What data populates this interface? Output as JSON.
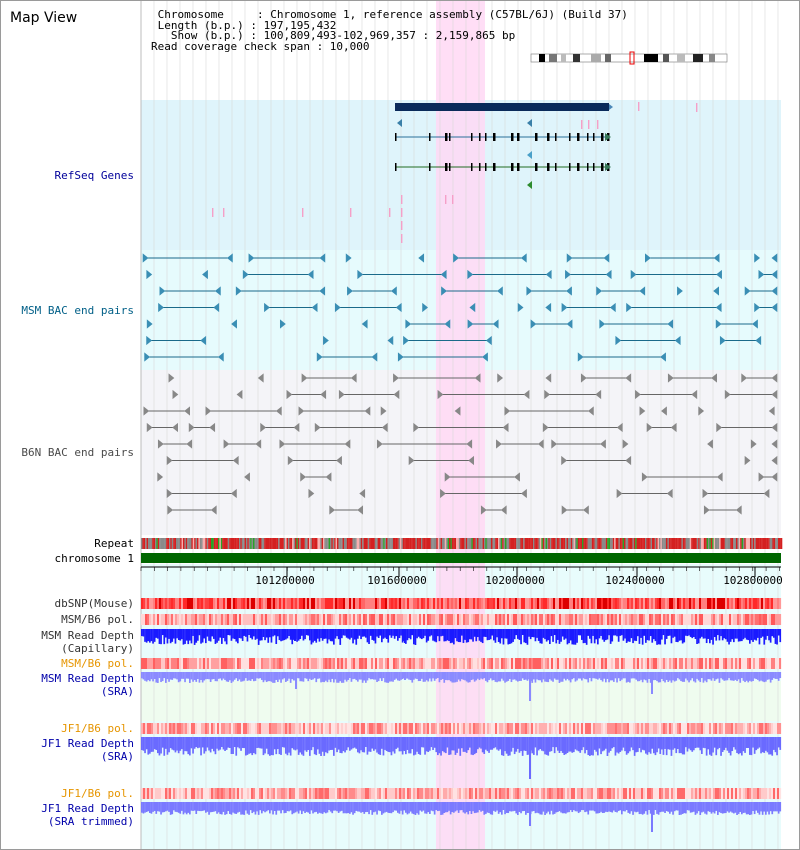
{
  "title": "Map View",
  "info": {
    "line1": " Chromosome     : Chromosome 1, reference assembly (C57BL/6J) (Build 37)",
    "line2": " Length (b.p.) : 197,195,432",
    "line3": "   Show (b.p.) : 100,809,493-102,969,357 : 2,159,865 bp",
    "line4": "Read coverage check span : 10,000"
  },
  "tracks": {
    "refseq": "RefSeq Genes",
    "msm_bac": "MSM BAC end pairs",
    "b6n_bac": "B6N BAC end pairs",
    "repeat": "Repeat",
    "chromosome": "chromosome 1",
    "dbsnp": "dbSNP(Mouse)",
    "msm_b6_pol": "MSM/B6 pol.",
    "msm_depth_cap_1": "MSM Read Depth",
    "msm_depth_cap_2": "(Capillary)",
    "msm_b6_pol2": "MSM/B6 pol.",
    "msm_depth_sra_1": "MSM Read Depth",
    "msm_depth_sra_2": "(SRA)",
    "jf1_b6_pol": "JF1/B6 pol.",
    "jf1_depth_sra_1": "JF1 Read Depth",
    "jf1_depth_sra_2": "(SRA)",
    "jf1_b6_pol2": "JF1/B6 pol.",
    "jf1_depth_trim_1": "JF1 Read Depth",
    "jf1_depth_trim_2": "(SRA trimmed)"
  },
  "ruler_ticks": [
    "101200000",
    "101600000",
    "102000000",
    "102400000",
    "102800000"
  ],
  "colors": {
    "refseq_label": "#00009a",
    "msm_bac_label": "#005f87",
    "b6n_bac_label": "#4a4a4a",
    "orange_label": "#e69500",
    "blue_label": "#0000aa",
    "highlight": "#ffd8f4",
    "refseq_bg": "#dff4fb",
    "msm_bg": "#e6fbfd",
    "chromosome_green": "#006600",
    "depth_blue": "#2b2bf0"
  }
}
